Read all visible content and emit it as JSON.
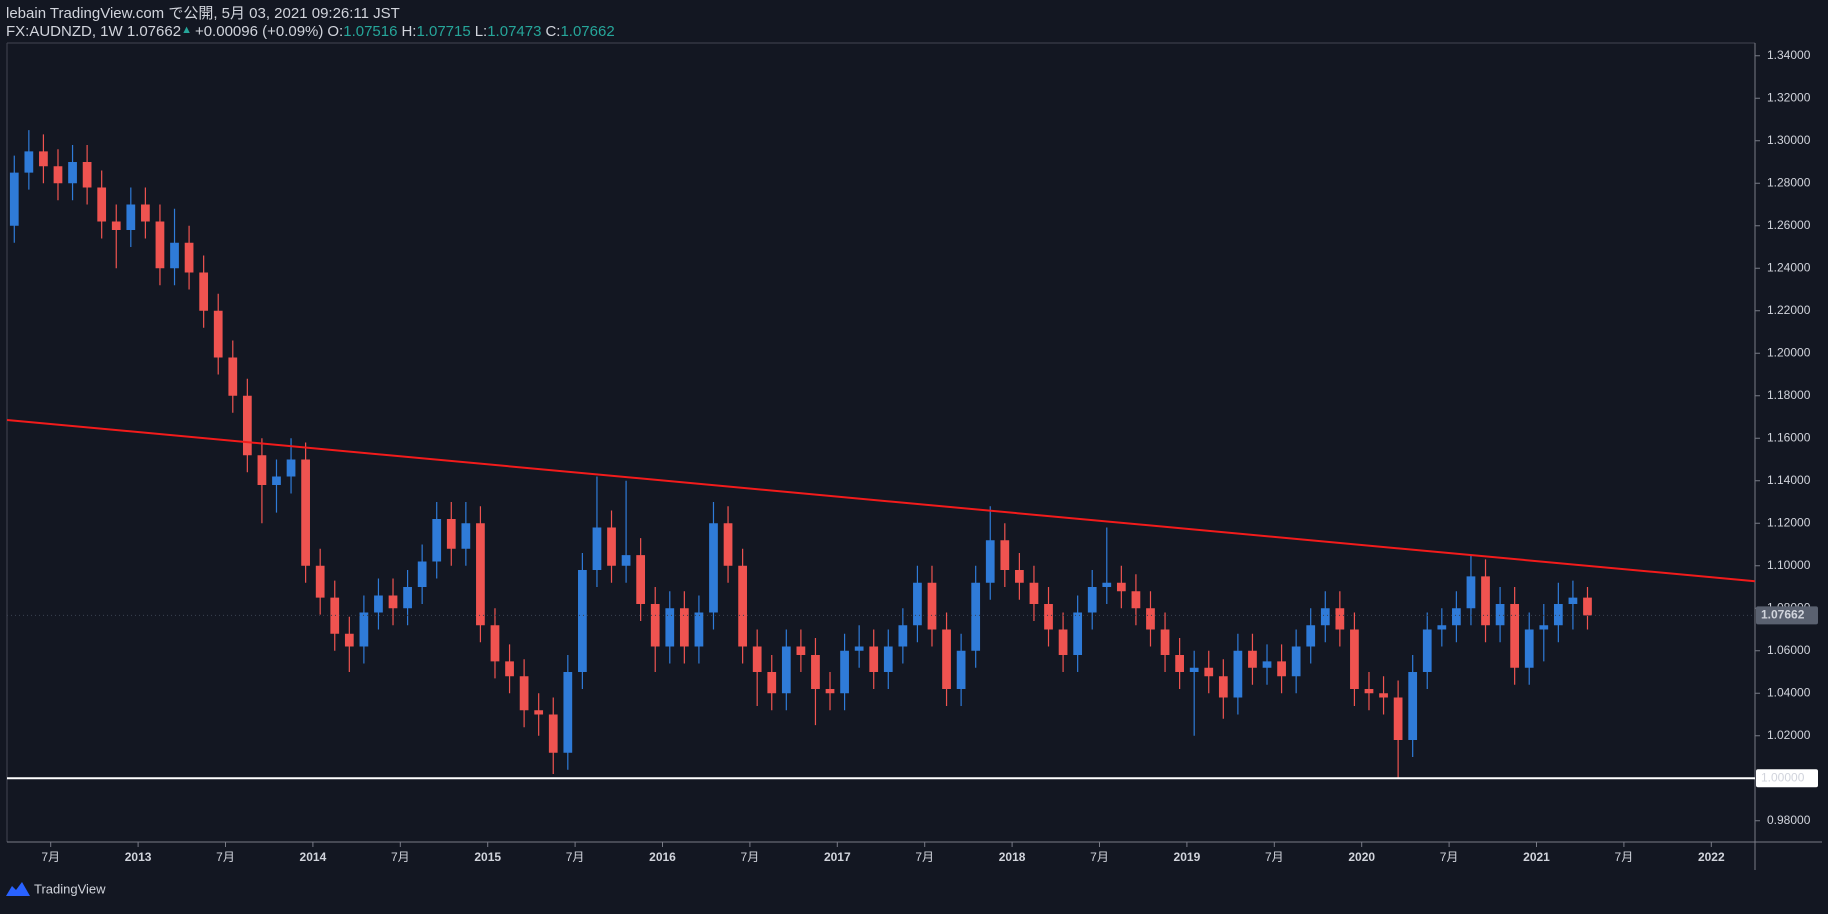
{
  "header": {
    "published": "lebain TradingView.com で公開, 5月 03, 2021 09:26:11 JST",
    "symbol": "FX:AUDNZD, 1W 1.07662",
    "arrow": "▲",
    "change": "+0.00096 (+0.09%)",
    "ohlc": [
      {
        "label": "O:",
        "value": "1.07516"
      },
      {
        "label": "H:",
        "value": "1.07715"
      },
      {
        "label": "L:",
        "value": "1.07473"
      },
      {
        "label": "C:",
        "value": "1.07662"
      }
    ]
  },
  "footer": "TradingView",
  "chart_data": {
    "type": "candlestick",
    "up_color": "#2f7bd8",
    "down_color": "#ef5350",
    "grid": false,
    "x": [
      "2012-04",
      "2012-05",
      "2012-06",
      "2012-07",
      "2012-08",
      "2012-09",
      "2012-10",
      "2012-11",
      "2012-12",
      "2013-01",
      "2013-02",
      "2013-03",
      "2013-04",
      "2013-05",
      "2013-06",
      "2013-07",
      "2013-08",
      "2013-09",
      "2013-10",
      "2013-11",
      "2013-12",
      "2014-01",
      "2014-02",
      "2014-03",
      "2014-04",
      "2014-05",
      "2014-06",
      "2014-07",
      "2014-08",
      "2014-09",
      "2014-10",
      "2014-11",
      "2014-12",
      "2015-01",
      "2015-02",
      "2015-03",
      "2015-04",
      "2015-05",
      "2015-06",
      "2015-07",
      "2015-08",
      "2015-09",
      "2015-10",
      "2015-11",
      "2015-12",
      "2016-01",
      "2016-02",
      "2016-03",
      "2016-04",
      "2016-05",
      "2016-06",
      "2016-07",
      "2016-08",
      "2016-09",
      "2016-10",
      "2016-11",
      "2016-12",
      "2017-01",
      "2017-02",
      "2017-03",
      "2017-04",
      "2017-05",
      "2017-06",
      "2017-07",
      "2017-08",
      "2017-09",
      "2017-10",
      "2017-11",
      "2017-12",
      "2018-01",
      "2018-02",
      "2018-03",
      "2018-04",
      "2018-05",
      "2018-06",
      "2018-07",
      "2018-08",
      "2018-09",
      "2018-10",
      "2018-11",
      "2018-12",
      "2019-01",
      "2019-02",
      "2019-03",
      "2019-04",
      "2019-05",
      "2019-06",
      "2019-07",
      "2019-08",
      "2019-09",
      "2019-10",
      "2019-11",
      "2019-12",
      "2020-01",
      "2020-02",
      "2020-03",
      "2020-04",
      "2020-05",
      "2020-06",
      "2020-07",
      "2020-08",
      "2020-09",
      "2020-10",
      "2020-11",
      "2020-12",
      "2021-01",
      "2021-02",
      "2021-03",
      "2021-04"
    ],
    "open": [
      1.26,
      1.285,
      1.295,
      1.288,
      1.28,
      1.29,
      1.278,
      1.262,
      1.258,
      1.27,
      1.262,
      1.24,
      1.252,
      1.238,
      1.22,
      1.198,
      1.18,
      1.152,
      1.138,
      1.142,
      1.15,
      1.1,
      1.085,
      1.068,
      1.062,
      1.078,
      1.086,
      1.08,
      1.09,
      1.102,
      1.122,
      1.108,
      1.12,
      1.072,
      1.055,
      1.048,
      1.032,
      1.03,
      1.012,
      1.05,
      1.098,
      1.118,
      1.1,
      1.105,
      1.082,
      1.062,
      1.08,
      1.062,
      1.078,
      1.12,
      1.1,
      1.062,
      1.05,
      1.04,
      1.062,
      1.058,
      1.042,
      1.04,
      1.06,
      1.062,
      1.05,
      1.062,
      1.072,
      1.092,
      1.07,
      1.042,
      1.06,
      1.092,
      1.112,
      1.098,
      1.092,
      1.082,
      1.07,
      1.058,
      1.078,
      1.09,
      1.092,
      1.088,
      1.08,
      1.07,
      1.058,
      1.05,
      1.052,
      1.048,
      1.038,
      1.06,
      1.052,
      1.055,
      1.048,
      1.062,
      1.072,
      1.08,
      1.07,
      1.042,
      1.04,
      1.038,
      1.018,
      1.05,
      1.07,
      1.072,
      1.08,
      1.095,
      1.072,
      1.082,
      1.052,
      1.07,
      1.072,
      1.082,
      1.085
    ],
    "high": [
      1.293,
      1.305,
      1.303,
      1.296,
      1.298,
      1.298,
      1.286,
      1.27,
      1.278,
      1.278,
      1.27,
      1.268,
      1.26,
      1.246,
      1.228,
      1.206,
      1.188,
      1.16,
      1.15,
      1.16,
      1.158,
      1.108,
      1.093,
      1.076,
      1.086,
      1.094,
      1.094,
      1.098,
      1.11,
      1.13,
      1.13,
      1.13,
      1.128,
      1.08,
      1.063,
      1.056,
      1.04,
      1.038,
      1.058,
      1.106,
      1.142,
      1.126,
      1.14,
      1.113,
      1.09,
      1.088,
      1.088,
      1.086,
      1.13,
      1.128,
      1.108,
      1.07,
      1.058,
      1.07,
      1.07,
      1.066,
      1.05,
      1.068,
      1.072,
      1.07,
      1.07,
      1.08,
      1.1,
      1.1,
      1.078,
      1.068,
      1.1,
      1.128,
      1.12,
      1.106,
      1.1,
      1.09,
      1.078,
      1.086,
      1.098,
      1.118,
      1.1,
      1.096,
      1.088,
      1.078,
      1.066,
      1.06,
      1.06,
      1.056,
      1.068,
      1.068,
      1.063,
      1.063,
      1.07,
      1.08,
      1.088,
      1.088,
      1.078,
      1.05,
      1.048,
      1.046,
      1.058,
      1.078,
      1.08,
      1.088,
      1.105,
      1.103,
      1.09,
      1.09,
      1.078,
      1.082,
      1.092,
      1.093,
      1.09
    ],
    "low": [
      1.252,
      1.277,
      1.28,
      1.272,
      1.272,
      1.27,
      1.254,
      1.24,
      1.25,
      1.254,
      1.232,
      1.232,
      1.23,
      1.212,
      1.19,
      1.172,
      1.144,
      1.12,
      1.125,
      1.134,
      1.092,
      1.077,
      1.06,
      1.05,
      1.054,
      1.07,
      1.072,
      1.072,
      1.082,
      1.094,
      1.1,
      1.1,
      1.064,
      1.047,
      1.04,
      1.024,
      1.02,
      1.002,
      1.004,
      1.042,
      1.09,
      1.092,
      1.092,
      1.074,
      1.05,
      1.054,
      1.054,
      1.054,
      1.07,
      1.092,
      1.054,
      1.034,
      1.032,
      1.032,
      1.05,
      1.025,
      1.032,
      1.032,
      1.052,
      1.042,
      1.042,
      1.054,
      1.064,
      1.062,
      1.034,
      1.034,
      1.052,
      1.084,
      1.09,
      1.084,
      1.074,
      1.062,
      1.05,
      1.05,
      1.07,
      1.082,
      1.08,
      1.072,
      1.062,
      1.05,
      1.042,
      1.02,
      1.04,
      1.028,
      1.03,
      1.044,
      1.044,
      1.04,
      1.04,
      1.054,
      1.064,
      1.062,
      1.034,
      1.032,
      1.03,
      1.0,
      1.01,
      1.042,
      1.062,
      1.064,
      1.072,
      1.064,
      1.064,
      1.044,
      1.044,
      1.055,
      1.064,
      1.07,
      1.07
    ],
    "close": [
      1.285,
      1.295,
      1.288,
      1.28,
      1.29,
      1.278,
      1.262,
      1.258,
      1.27,
      1.262,
      1.24,
      1.252,
      1.238,
      1.22,
      1.198,
      1.18,
      1.152,
      1.138,
      1.142,
      1.15,
      1.1,
      1.085,
      1.068,
      1.062,
      1.078,
      1.086,
      1.08,
      1.09,
      1.102,
      1.122,
      1.108,
      1.12,
      1.072,
      1.055,
      1.048,
      1.032,
      1.03,
      1.012,
      1.05,
      1.098,
      1.118,
      1.1,
      1.105,
      1.082,
      1.062,
      1.08,
      1.062,
      1.078,
      1.12,
      1.1,
      1.062,
      1.05,
      1.04,
      1.062,
      1.058,
      1.042,
      1.04,
      1.06,
      1.062,
      1.05,
      1.062,
      1.072,
      1.092,
      1.07,
      1.042,
      1.06,
      1.092,
      1.112,
      1.098,
      1.092,
      1.082,
      1.07,
      1.058,
      1.078,
      1.09,
      1.092,
      1.088,
      1.08,
      1.07,
      1.058,
      1.05,
      1.052,
      1.048,
      1.038,
      1.06,
      1.052,
      1.055,
      1.048,
      1.062,
      1.072,
      1.08,
      1.07,
      1.042,
      1.04,
      1.038,
      1.018,
      1.05,
      1.07,
      1.072,
      1.08,
      1.095,
      1.072,
      1.082,
      1.052,
      1.07,
      1.072,
      1.082,
      1.085,
      1.07662
    ],
    "xlim": [
      "2012-04",
      "2022-04"
    ],
    "xticks": [
      {
        "value": "2012-07",
        "label": "7月"
      },
      {
        "value": "2013-01",
        "label": "2013"
      },
      {
        "value": "2013-07",
        "label": "7月"
      },
      {
        "value": "2014-01",
        "label": "2014"
      },
      {
        "value": "2014-07",
        "label": "7月"
      },
      {
        "value": "2015-01",
        "label": "2015"
      },
      {
        "value": "2015-07",
        "label": "7月"
      },
      {
        "value": "2016-01",
        "label": "2016"
      },
      {
        "value": "2016-07",
        "label": "7月"
      },
      {
        "value": "2017-01",
        "label": "2017"
      },
      {
        "value": "2017-07",
        "label": "7月"
      },
      {
        "value": "2018-01",
        "label": "2018"
      },
      {
        "value": "2018-07",
        "label": "7月"
      },
      {
        "value": "2019-01",
        "label": "2019"
      },
      {
        "value": "2019-07",
        "label": "7月"
      },
      {
        "value": "2020-01",
        "label": "2020"
      },
      {
        "value": "2020-07",
        "label": "7月"
      },
      {
        "value": "2021-01",
        "label": "2021"
      },
      {
        "value": "2021-07",
        "label": "7月"
      },
      {
        "value": "2022-01",
        "label": "2022"
      }
    ],
    "ylim": [
      0.97,
      1.346
    ],
    "yticks": [
      {
        "value": 0.98,
        "label": "0.98000"
      },
      {
        "value": 1.02,
        "label": "1.02000"
      },
      {
        "value": 1.04,
        "label": "1.04000"
      },
      {
        "value": 1.06,
        "label": "1.06000"
      },
      {
        "value": 1.08,
        "label": "1.08000"
      },
      {
        "value": 1.1,
        "label": "1.10000"
      },
      {
        "value": 1.12,
        "label": "1.12000"
      },
      {
        "value": 1.14,
        "label": "1.14000"
      },
      {
        "value": 1.16,
        "label": "1.16000"
      },
      {
        "value": 1.18,
        "label": "1.18000"
      },
      {
        "value": 1.2,
        "label": "1.20000"
      },
      {
        "value": 1.22,
        "label": "1.22000"
      },
      {
        "value": 1.24,
        "label": "1.24000"
      },
      {
        "value": 1.26,
        "label": "1.26000"
      },
      {
        "value": 1.28,
        "label": "1.28000"
      },
      {
        "value": 1.3,
        "label": "1.30000"
      },
      {
        "value": 1.32,
        "label": "1.32000"
      },
      {
        "value": 1.34,
        "label": "1.34000"
      }
    ],
    "trendline": {
      "x": [
        "2012-04",
        "2022-04"
      ],
      "y": [
        1.1686,
        1.0927
      ],
      "color": "#f21b1b"
    },
    "support": {
      "value": 1.0,
      "label": "1.00000",
      "color": "#ffffff"
    },
    "last_price": {
      "value": 1.07662,
      "label": "1.07662",
      "color": "#5a6170"
    }
  }
}
